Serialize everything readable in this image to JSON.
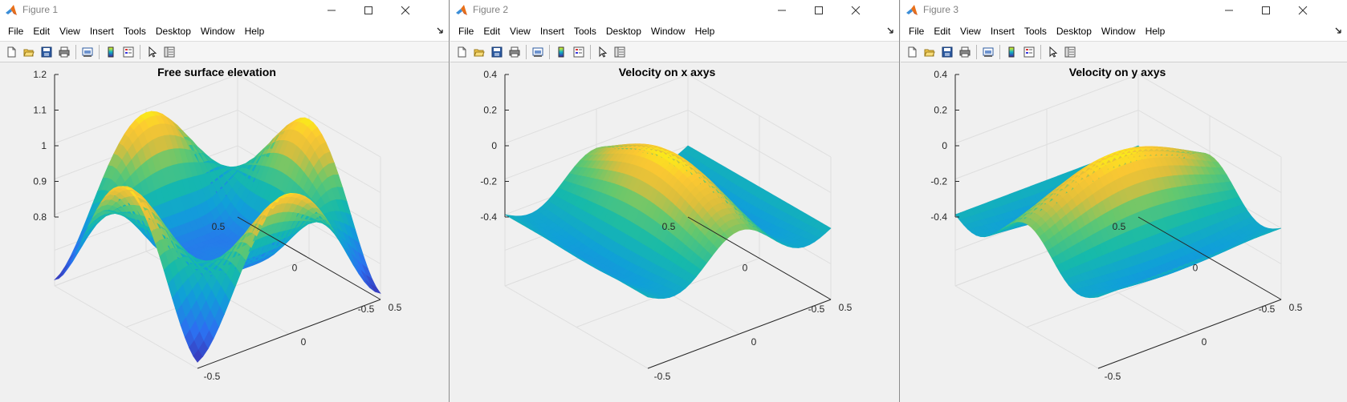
{
  "menu": [
    "File",
    "Edit",
    "View",
    "Insert",
    "Tools",
    "Desktop",
    "Window",
    "Help"
  ],
  "icons": [
    "new-file-icon",
    "open-folder-icon",
    "save-icon",
    "print-icon",
    "link-plot-icon",
    "colorbar-icon",
    "legend-icon",
    "pointer-icon",
    "property-editor-icon"
  ],
  "figures": [
    {
      "title": "Figure 1",
      "plot_title": "Free surface elevation",
      "z_ticks": [
        "1.2",
        "1.1",
        "1",
        "0.9",
        "0.8"
      ],
      "x_ticks": [
        "0.5",
        "0",
        "-0.5"
      ],
      "y_ticks": [
        "-0.5",
        "0",
        "0.5"
      ]
    },
    {
      "title": "Figure 2",
      "plot_title": "Velocity on x axys",
      "z_ticks": [
        "0.4",
        "0.2",
        "0",
        "-0.2",
        "-0.4"
      ],
      "x_ticks": [
        "0.5",
        "0",
        "-0.5"
      ],
      "y_ticks": [
        "-0.5",
        "0",
        "0.5"
      ]
    },
    {
      "title": "Figure 3",
      "plot_title": "Velocity on y axys",
      "z_ticks": [
        "0.4",
        "0.2",
        "0",
        "-0.2",
        "-0.4"
      ],
      "x_ticks": [
        "0.5",
        "0",
        "-0.5"
      ],
      "y_ticks": [
        "-0.5",
        "0",
        "0.5"
      ]
    }
  ],
  "colors": {
    "parula_low": "#3e26a8",
    "parula_mid": "#10b3c8",
    "parula_high": "#f9fb0e"
  }
}
